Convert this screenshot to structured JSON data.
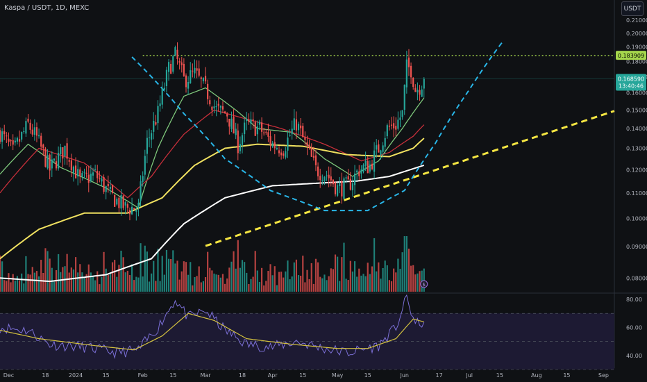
{
  "header": {
    "title": "Kaspa / USDT, 1D, MEXC",
    "unit_button": "USDT"
  },
  "colors": {
    "background": "#0f1114",
    "up": "#26a69a",
    "down": "#ef5350",
    "resistance": "#a5d64c",
    "cup_curve": "#29b6e8",
    "trend_line": "#f5e642",
    "ma_fast": "#7ec77b",
    "ma_red": "#c62f3a",
    "ma_yellow": "#f0e160",
    "ma_white": "#ffffff",
    "rsi_line": "#7b6fd6",
    "rsi_ma": "#d4c23f",
    "rsi_band": "#1d1a33",
    "last_price_tag": "#26a69a",
    "resistance_tag": "#a5d64c"
  },
  "badges": {
    "resistance_price": "0.183909",
    "last_price": "0.168590",
    "countdown": "13:40:46",
    "event_icon": "dividend-icon"
  },
  "chart_data": [
    {
      "type": "candlestick",
      "title": "Kaspa / USDT, 1D, MEXC",
      "y_scale": "log",
      "ylim": [
        0.076,
        0.215
      ],
      "xlim": [
        "2023-11-27",
        "2024-09-06"
      ],
      "y_ticks": [
        "0.210000",
        "0.200000",
        "0.190000",
        "0.180000",
        "0.170000",
        "0.160000",
        "0.150000",
        "0.140000",
        "0.130000",
        "0.120000",
        "0.110000",
        "0.100000",
        "0.090000",
        "0.080000"
      ],
      "y_tick_values": [
        0.21,
        0.2,
        0.19,
        0.18,
        0.17,
        0.16,
        0.15,
        0.14,
        0.13,
        0.12,
        0.11,
        0.1,
        0.09,
        0.08
      ],
      "x_ticks": [
        {
          "label": "Dec",
          "date": "2023-12-01"
        },
        {
          "label": "18",
          "date": "2023-12-18"
        },
        {
          "label": "2024",
          "date": "2024-01-01"
        },
        {
          "label": "15",
          "date": "2024-01-15"
        },
        {
          "label": "Feb",
          "date": "2024-02-01"
        },
        {
          "label": "15",
          "date": "2024-02-15"
        },
        {
          "label": "Mar",
          "date": "2024-03-01"
        },
        {
          "label": "18",
          "date": "2024-03-18"
        },
        {
          "label": "Apr",
          "date": "2024-04-01"
        },
        {
          "label": "15",
          "date": "2024-04-15"
        },
        {
          "label": "May",
          "date": "2024-05-01"
        },
        {
          "label": "15",
          "date": "2024-05-15"
        },
        {
          "label": "Jun",
          "date": "2024-06-01"
        },
        {
          "label": "17",
          "date": "2024-06-17"
        },
        {
          "label": "Jul",
          "date": "2024-07-01"
        },
        {
          "label": "15",
          "date": "2024-07-15"
        },
        {
          "label": "Aug",
          "date": "2024-08-01"
        },
        {
          "label": "15",
          "date": "2024-08-15"
        },
        {
          "label": "Sep",
          "date": "2024-09-01"
        }
      ],
      "last_date": "2024-06-10",
      "close_anchors": [
        [
          "2023-11-27",
          0.138
        ],
        [
          "2023-12-03",
          0.128
        ],
        [
          "2023-12-10",
          0.142
        ],
        [
          "2023-12-14",
          0.135
        ],
        [
          "2023-12-20",
          0.12
        ],
        [
          "2023-12-27",
          0.13
        ],
        [
          "2024-01-03",
          0.115
        ],
        [
          "2024-01-10",
          0.118
        ],
        [
          "2024-01-17",
          0.109
        ],
        [
          "2024-01-24",
          0.104
        ],
        [
          "2024-01-30",
          0.104
        ],
        [
          "2024-02-03",
          0.133
        ],
        [
          "2024-02-08",
          0.148
        ],
        [
          "2024-02-13",
          0.175
        ],
        [
          "2024-02-16",
          0.184
        ],
        [
          "2024-02-20",
          0.168
        ],
        [
          "2024-02-25",
          0.172
        ],
        [
          "2024-03-01",
          0.162
        ],
        [
          "2024-03-06",
          0.15
        ],
        [
          "2024-03-11",
          0.148
        ],
        [
          "2024-03-16",
          0.132
        ],
        [
          "2024-03-20",
          0.142
        ],
        [
          "2024-03-26",
          0.14
        ],
        [
          "2024-04-01",
          0.132
        ],
        [
          "2024-04-06",
          0.13
        ],
        [
          "2024-04-12",
          0.143
        ],
        [
          "2024-04-16",
          0.132
        ],
        [
          "2024-04-21",
          0.12
        ],
        [
          "2024-04-26",
          0.118
        ],
        [
          "2024-05-01",
          0.112
        ],
        [
          "2024-05-06",
          0.113
        ],
        [
          "2024-05-11",
          0.12
        ],
        [
          "2024-05-16",
          0.122
        ],
        [
          "2024-05-20",
          0.13
        ],
        [
          "2024-05-24",
          0.14
        ],
        [
          "2024-05-28",
          0.142
        ],
        [
          "2024-05-31",
          0.148
        ],
        [
          "2024-06-02",
          0.176
        ],
        [
          "2024-06-04",
          0.175
        ],
        [
          "2024-06-06",
          0.162
        ],
        [
          "2024-06-08",
          0.164
        ],
        [
          "2024-06-10",
          0.1686
        ]
      ],
      "moving_averages": [
        {
          "color_key": "ma_fast",
          "points": [
            [
              "2023-11-27",
              0.118
            ],
            [
              "2023-12-10",
              0.132
            ],
            [
              "2023-12-25",
              0.121
            ],
            [
              "2024-01-15",
              0.112
            ],
            [
              "2024-01-30",
              0.104
            ],
            [
              "2024-02-08",
              0.13
            ],
            [
              "2024-02-20",
              0.158
            ],
            [
              "2024-03-01",
              0.163
            ],
            [
              "2024-03-15",
              0.15
            ],
            [
              "2024-03-25",
              0.14
            ],
            [
              "2024-04-10",
              0.138
            ],
            [
              "2024-04-25",
              0.125
            ],
            [
              "2024-05-08",
              0.117
            ],
            [
              "2024-05-20",
              0.124
            ],
            [
              "2024-05-31",
              0.14
            ],
            [
              "2024-06-10",
              0.157
            ]
          ]
        },
        {
          "color_key": "ma_red",
          "points": [
            [
              "2023-11-27",
              0.11
            ],
            [
              "2023-12-15",
              0.13
            ],
            [
              "2024-01-05",
              0.123
            ],
            [
              "2024-01-25",
              0.108
            ],
            [
              "2024-02-05",
              0.117
            ],
            [
              "2024-02-20",
              0.137
            ],
            [
              "2024-03-05",
              0.15
            ],
            [
              "2024-03-20",
              0.145
            ],
            [
              "2024-04-05",
              0.14
            ],
            [
              "2024-04-25",
              0.132
            ],
            [
              "2024-05-12",
              0.124
            ],
            [
              "2024-05-25",
              0.128
            ],
            [
              "2024-06-05",
              0.136
            ],
            [
              "2024-06-10",
              0.142
            ]
          ]
        },
        {
          "color_key": "ma_yellow",
          "points": [
            [
              "2023-11-27",
              0.086
            ],
            [
              "2023-12-15",
              0.096
            ],
            [
              "2024-01-05",
              0.102
            ],
            [
              "2024-01-25",
              0.102
            ],
            [
              "2024-02-10",
              0.108
            ],
            [
              "2024-02-25",
              0.122
            ],
            [
              "2024-03-10",
              0.13
            ],
            [
              "2024-03-25",
              0.132
            ],
            [
              "2024-04-15",
              0.131
            ],
            [
              "2024-05-05",
              0.127
            ],
            [
              "2024-05-25",
              0.126
            ],
            [
              "2024-06-05",
              0.13
            ],
            [
              "2024-06-10",
              0.135
            ]
          ]
        },
        {
          "color_key": "ma_white",
          "points": [
            [
              "2023-11-27",
              0.08
            ],
            [
              "2023-12-20",
              0.079
            ],
            [
              "2024-01-15",
              0.081
            ],
            [
              "2024-02-05",
              0.086
            ],
            [
              "2024-02-20",
              0.098
            ],
            [
              "2024-03-10",
              0.108
            ],
            [
              "2024-04-01",
              0.113
            ],
            [
              "2024-04-20",
              0.114
            ],
            [
              "2024-05-10",
              0.115
            ],
            [
              "2024-05-25",
              0.117
            ],
            [
              "2024-06-10",
              0.122
            ]
          ]
        }
      ],
      "drawings": {
        "resistance_level": 0.1839,
        "resistance_from": "2024-02-01",
        "trend_line": {
          "from": [
            "2024-03-01",
            0.0902
          ],
          "to": [
            "2024-09-06",
            0.1495
          ]
        },
        "cup_curve": [
          [
            "2024-01-27",
            0.183
          ],
          [
            "2024-02-20",
            0.148
          ],
          [
            "2024-03-10",
            0.125
          ],
          [
            "2024-03-31",
            0.111
          ],
          [
            "2024-04-25",
            0.103
          ],
          [
            "2024-05-15",
            0.103
          ],
          [
            "2024-06-01",
            0.111
          ],
          [
            "2024-06-15",
            0.132
          ],
          [
            "2024-07-01",
            0.162
          ],
          [
            "2024-07-16",
            0.193
          ]
        ]
      },
      "volume": {
        "peak_date": "2024-06-01"
      }
    },
    {
      "type": "line",
      "indicator": "RSI",
      "ylim": [
        32,
        83
      ],
      "y_ticks": [
        "80.00",
        "60.00",
        "40.00"
      ],
      "y_tick_values": [
        80,
        60,
        40
      ],
      "band": [
        30,
        70
      ],
      "mid_line": 50,
      "rsi_anchors": [
        [
          "2023-11-27",
          60
        ],
        [
          "2023-12-10",
          58
        ],
        [
          "2023-12-20",
          48
        ],
        [
          "2024-01-05",
          46
        ],
        [
          "2024-01-20",
          42
        ],
        [
          "2024-01-30",
          44
        ],
        [
          "2024-02-08",
          60
        ],
        [
          "2024-02-16",
          80
        ],
        [
          "2024-02-22",
          67
        ],
        [
          "2024-03-01",
          72
        ],
        [
          "2024-03-10",
          58
        ],
        [
          "2024-03-20",
          48
        ],
        [
          "2024-04-01",
          46
        ],
        [
          "2024-04-12",
          50
        ],
        [
          "2024-04-25",
          45
        ],
        [
          "2024-05-06",
          42
        ],
        [
          "2024-05-20",
          47
        ],
        [
          "2024-05-28",
          60
        ],
        [
          "2024-06-02",
          81
        ],
        [
          "2024-06-06",
          62
        ],
        [
          "2024-06-10",
          64
        ]
      ],
      "rsi_ma_anchors": [
        [
          "2023-11-27",
          58
        ],
        [
          "2023-12-15",
          52
        ],
        [
          "2024-01-10",
          47
        ],
        [
          "2024-01-28",
          44
        ],
        [
          "2024-02-10",
          54
        ],
        [
          "2024-02-22",
          70
        ],
        [
          "2024-03-05",
          65
        ],
        [
          "2024-03-20",
          52
        ],
        [
          "2024-04-10",
          48
        ],
        [
          "2024-05-01",
          45
        ],
        [
          "2024-05-15",
          45
        ],
        [
          "2024-05-28",
          52
        ],
        [
          "2024-06-05",
          66
        ],
        [
          "2024-06-10",
          64
        ]
      ]
    }
  ]
}
